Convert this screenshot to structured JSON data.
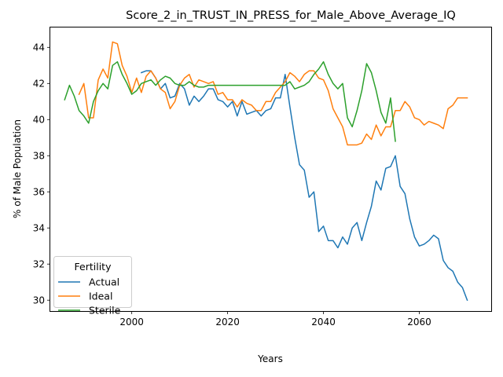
{
  "chart_data": {
    "type": "line",
    "title": "Score_2_in_TRUST_IN_PRESS_for_Male_Above_Average_IQ",
    "xlabel": "Years",
    "ylabel": "% of Male Population",
    "xlim": [
      1983,
      2075
    ],
    "ylim": [
      29.4,
      45.1
    ],
    "xticks": [
      2000,
      2020,
      2040,
      2060
    ],
    "yticks": [
      30,
      32,
      34,
      36,
      38,
      40,
      42,
      44
    ],
    "grid": false,
    "legend": {
      "title": "Fertility",
      "placement": "lower-left"
    },
    "series": [
      {
        "name": "Actual",
        "color": "#1f77b4",
        "x": [
          2002,
          2003,
          2004,
          2005,
          2006,
          2007,
          2008,
          2009,
          2010,
          2011,
          2012,
          2013,
          2014,
          2015,
          2016,
          2017,
          2018,
          2019,
          2020,
          2021,
          2022,
          2023,
          2024,
          2025,
          2026,
          2027,
          2028,
          2029,
          2030,
          2031,
          2032,
          2033,
          2034,
          2035,
          2036,
          2037,
          2038,
          2039,
          2040,
          2041,
          2042,
          2043,
          2044,
          2045,
          2046,
          2047,
          2048,
          2049,
          2050,
          2051,
          2052,
          2053,
          2054,
          2055,
          2056,
          2057,
          2058,
          2059,
          2060,
          2061,
          2062,
          2063,
          2064,
          2065,
          2066,
          2067,
          2068,
          2069,
          2070
        ],
        "y": [
          42.6,
          42.7,
          42.7,
          42.3,
          41.7,
          42.0,
          41.2,
          41.3,
          42.0,
          41.7,
          40.8,
          41.3,
          41.0,
          41.3,
          41.7,
          41.7,
          41.1,
          41.0,
          40.7,
          41.0,
          40.2,
          41.0,
          40.3,
          40.4,
          40.5,
          40.2,
          40.5,
          40.6,
          41.2,
          41.2,
          42.5,
          40.7,
          39.0,
          37.5,
          37.2,
          35.7,
          36.0,
          33.8,
          34.1,
          33.3,
          33.3,
          32.9,
          33.5,
          33.1,
          34.0,
          34.3,
          33.3,
          34.3,
          35.2,
          36.6,
          36.1,
          37.3,
          37.4,
          38.0,
          36.3,
          35.9,
          34.5,
          33.5,
          33.0,
          33.1,
          33.3,
          33.6,
          33.4,
          32.2,
          31.8,
          31.6,
          31.0,
          30.7,
          30.0
        ]
      },
      {
        "name": "Ideal",
        "color": "#ff7f0e",
        "x": [
          1989,
          1990,
          1991,
          1992,
          1993,
          1994,
          1995,
          1996,
          1997,
          1998,
          1999,
          2000,
          2001,
          2002,
          2003,
          2004,
          2005,
          2006,
          2007,
          2008,
          2009,
          2010,
          2011,
          2012,
          2013,
          2014,
          2015,
          2016,
          2017,
          2018,
          2019,
          2020,
          2021,
          2022,
          2023,
          2024,
          2025,
          2026,
          2027,
          2028,
          2029,
          2030,
          2031,
          2032,
          2033,
          2034,
          2035,
          2036,
          2037,
          2038,
          2039,
          2040,
          2041,
          2042,
          2043,
          2044,
          2045,
          2046,
          2047,
          2048,
          2049,
          2050,
          2051,
          2052,
          2053,
          2054,
          2055,
          2056,
          2057,
          2058,
          2059,
          2060,
          2061,
          2062,
          2063,
          2064,
          2065,
          2066,
          2067,
          2068,
          2069,
          2070
        ],
        "y": [
          41.4,
          42.0,
          40.1,
          40.1,
          42.2,
          42.8,
          42.3,
          44.3,
          44.2,
          43.0,
          42.4,
          41.5,
          42.3,
          41.5,
          42.4,
          42.7,
          42.3,
          41.7,
          41.5,
          40.6,
          41.0,
          41.9,
          42.3,
          42.5,
          41.8,
          42.2,
          42.1,
          42.0,
          42.1,
          41.4,
          41.5,
          41.1,
          41.1,
          40.7,
          41.1,
          40.9,
          40.8,
          40.5,
          40.5,
          41.0,
          41.0,
          41.5,
          41.8,
          42.1,
          42.6,
          42.4,
          42.1,
          42.5,
          42.7,
          42.7,
          42.3,
          42.2,
          41.6,
          40.6,
          40.1,
          39.6,
          38.6,
          38.6,
          38.6,
          38.7,
          39.2,
          38.9,
          39.7,
          39.1,
          39.6,
          39.6,
          40.5,
          40.5,
          41.0,
          40.7,
          40.1,
          40.0,
          39.7,
          39.9,
          39.8,
          39.7,
          39.5,
          40.6,
          40.8,
          41.2,
          41.2,
          41.2
        ]
      },
      {
        "name": "Sterile",
        "color": "#2ca02c",
        "x": [
          1986,
          1987,
          1988,
          1989,
          1990,
          1991,
          1992,
          1993,
          1994,
          1995,
          1996,
          1997,
          1998,
          1999,
          2000,
          2001,
          2002,
          2003,
          2004,
          2005,
          2006,
          2007,
          2008,
          2009,
          2010,
          2011,
          2012,
          2013,
          2014,
          2015,
          2016,
          2017,
          2018,
          2019,
          2020,
          2021,
          2022,
          2023,
          2024,
          2025,
          2026,
          2027,
          2028,
          2029,
          2030,
          2031,
          2032,
          2033,
          2034,
          2035,
          2036,
          2037,
          2038,
          2039,
          2040,
          2041,
          2042,
          2043,
          2044,
          2045,
          2046,
          2047,
          2048,
          2049,
          2050,
          2051,
          2052,
          2053,
          2054,
          2055
        ],
        "y": [
          41.1,
          41.9,
          41.3,
          40.5,
          40.2,
          39.8,
          41.0,
          41.6,
          42.0,
          41.7,
          43.0,
          43.2,
          42.5,
          42.0,
          41.4,
          41.6,
          42.0,
          42.1,
          42.2,
          41.9,
          42.2,
          42.4,
          42.3,
          42.0,
          41.9,
          41.9,
          42.1,
          41.9,
          41.8,
          41.8,
          41.9,
          41.9,
          41.9,
          41.9,
          41.9,
          41.9,
          41.9,
          41.9,
          41.9,
          41.9,
          41.9,
          41.9,
          41.9,
          41.9,
          41.9,
          41.9,
          41.9,
          42.1,
          41.7,
          41.8,
          41.9,
          42.1,
          42.5,
          42.8,
          43.2,
          42.5,
          42.0,
          41.7,
          42.0,
          40.1,
          39.6,
          40.5,
          41.6,
          43.1,
          42.6,
          41.6,
          40.4,
          39.8,
          41.2,
          38.8
        ]
      }
    ]
  }
}
